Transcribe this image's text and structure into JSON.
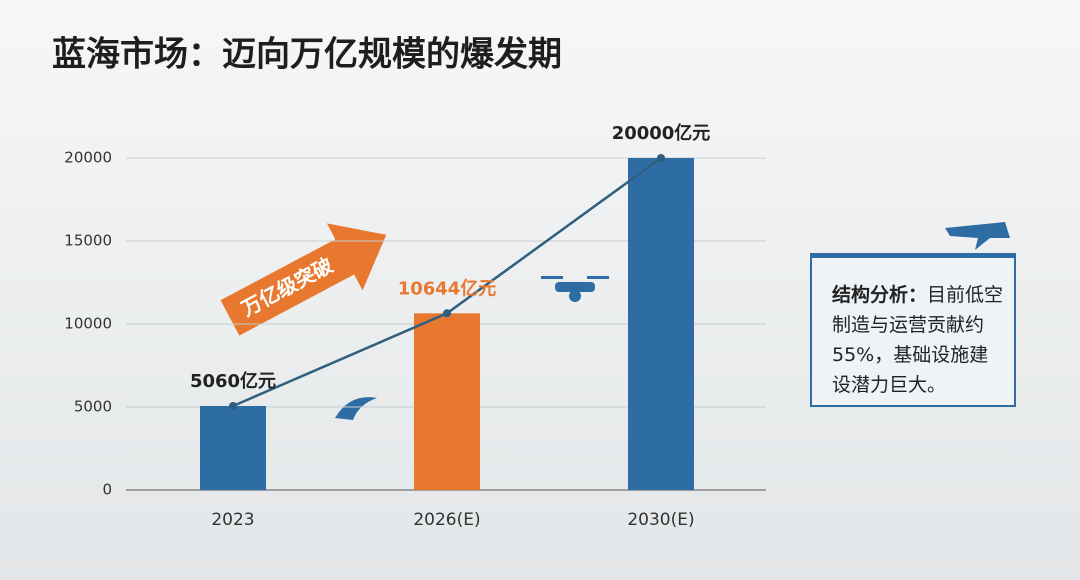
{
  "chart_data": {
    "type": "bar",
    "title": "蓝海市场：迈向万亿规模的爆发期",
    "categories": [
      "2023",
      "2026(E)",
      "2030(E)"
    ],
    "values": [
      5060,
      10644,
      20000
    ],
    "value_labels": [
      "5060亿元",
      "10644亿元",
      "20000亿元"
    ],
    "colors": [
      "#2e6da4",
      "#e8782f",
      "#2e6da4"
    ],
    "value_label_colors": [
      "#222222",
      "#e8782f",
      "#222222"
    ],
    "line_color": "#2f5f80",
    "ylim": [
      0,
      20000
    ],
    "yticks": [
      0,
      5000,
      10000,
      15000,
      20000
    ],
    "grid": true,
    "annotation": "万亿级突破"
  },
  "note": {
    "heading": "结构分析：",
    "text": "目前低空制造与运营贡献约55%，基础设施建设潜力巨大。"
  }
}
